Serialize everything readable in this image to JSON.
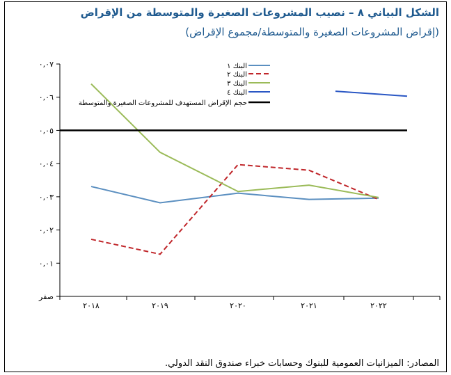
{
  "title": "الشكل البياني ٨ – نصيب المشروعات الصغيرة والمتوسطة من الإقراض",
  "subtitle": "(إقراض المشروعات الصغيرة والمتوسطة/مجموع الإقراض)",
  "source": "المصادر: الميزانيات العمومية للبنوك وحسابات خبراء صندوق النقد الدولي.",
  "chart_data": {
    "type": "line",
    "categories": [
      "٢٠١٨",
      "٢٠١٩",
      "٢٠٢٠",
      "٢٠٢١",
      "٢٠٢٢"
    ],
    "y_ticks": [
      {
        "value": 0,
        "label": "صفر"
      },
      {
        "value": 0.01,
        "label": "٠,٠١"
      },
      {
        "value": 0.02,
        "label": "٠,٠٢"
      },
      {
        "value": 0.03,
        "label": "٠,٠٣"
      },
      {
        "value": 0.04,
        "label": "٠,٠٤"
      },
      {
        "value": 0.05,
        "label": "٠,٠٥"
      },
      {
        "value": 0.06,
        "label": "٠,٠٦"
      },
      {
        "value": 0.07,
        "label": "٠,٠٧"
      }
    ],
    "ylim": [
      0,
      0.07
    ],
    "legend_position": "top-right",
    "series": [
      {
        "name": "البنك ١",
        "color": "#5b8fc0",
        "dash": "solid",
        "values": [
          0.0331,
          0.0282,
          0.0311,
          0.0292,
          0.0296
        ]
      },
      {
        "name": "البنك ٢",
        "color": "#c0262a",
        "dash": "dashed",
        "values": [
          0.0172,
          0.0127,
          0.0397,
          0.038,
          0.0292
        ]
      },
      {
        "name": "البنك ٣",
        "color": "#9bbb59",
        "dash": "solid",
        "values": [
          0.064,
          0.0434,
          0.0316,
          0.0335,
          0.0298
        ]
      },
      {
        "name": "البنك ٤",
        "color": "#2a57c4",
        "dash": "solid",
        "values": [
          null,
          null,
          null,
          0.0618,
          0.0603
        ]
      },
      {
        "name": "حجم الإقراض المستهدف للمشروعات الصغيرة والمتوسطة",
        "color": "#000000",
        "dash": "solid",
        "values": [
          0.05,
          0.05,
          0.05,
          0.05,
          0.05
        ]
      }
    ]
  }
}
